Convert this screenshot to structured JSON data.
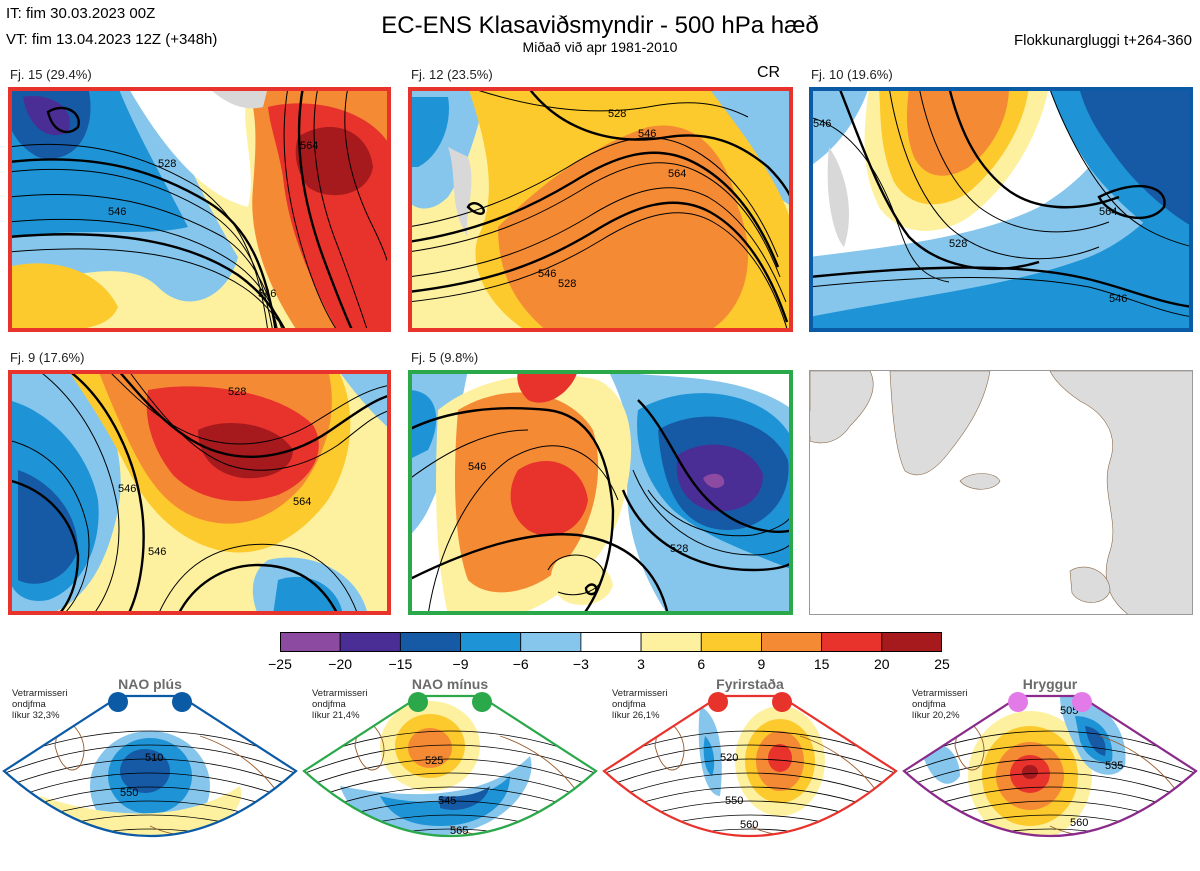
{
  "header": {
    "it_line": "IT: fim 30.03.2023 00Z",
    "vt_line": "VT: fim 13.04.2023 12Z  (+348h)",
    "title": "EC-ENS Klasaviðsmyndir - 500 hPa hæð",
    "subtitle": "Miðað við apr 1981-2010",
    "window_label": "Flokkunargluggi t+264-360"
  },
  "panels": [
    {
      "label": "Fj. 15 (29.4%)",
      "frame_color": "#e8322c",
      "regime": "Fyrirstaða"
    },
    {
      "label": "Fj. 12 (23.5%)",
      "frame_color": "#e8322c",
      "regime": "Fyrirstaða",
      "corner_label": "CR"
    },
    {
      "label": "Fj. 10 (19.6%)",
      "frame_color": "#0b5aa6",
      "regime": "NAO plús"
    },
    {
      "label": "Fj. 9 (17.6%)",
      "frame_color": "#e8322c",
      "regime": "Fyrirstaða"
    },
    {
      "label": "Fj. 5 (9.8%)",
      "frame_color": "#2aa84a",
      "regime": "NAO mínus"
    }
  ],
  "contour_labels": [
    "528",
    "546",
    "564",
    "546",
    "528",
    "546",
    "564",
    "546",
    "528",
    "546",
    "528",
    "546",
    "564",
    "546",
    "528",
    "546",
    "564",
    "546",
    "528"
  ],
  "colorbar": {
    "ticks": [
      "−25",
      "−20",
      "−15",
      "−9",
      "−6",
      "−3",
      "3",
      "6",
      "9",
      "15",
      "20",
      "25"
    ],
    "colors": [
      "#8c4aa0",
      "#4a2e96",
      "#1659a5",
      "#1e94d6",
      "#86c6ec",
      "#ffffff",
      "#fdf1a0",
      "#fcca2c",
      "#f58a35",
      "#e8322c",
      "#a61a1e"
    ]
  },
  "regimes": [
    {
      "name": "NAO plús",
      "info_line1": "Vetrarmisseri",
      "info_line2": "ondjfma",
      "info_line3": "líkur 32,3%",
      "dot_color": "#0b5aa6",
      "frame_color": "#0b5aa6",
      "labels": [
        "510",
        "550"
      ]
    },
    {
      "name": "NAO mínus",
      "info_line1": "Vetrarmisseri",
      "info_line2": "ondjfma",
      "info_line3": "líkur 21,4%",
      "dot_color": "#2aa84a",
      "frame_color": "#2aa84a",
      "labels": [
        "525",
        "545",
        "565"
      ]
    },
    {
      "name": "Fyrirstaða",
      "info_line1": "Vetrarmisseri",
      "info_line2": "ondjfma",
      "info_line3": "líkur 26,1%",
      "dot_color": "#e8322c",
      "frame_color": "#e8322c",
      "labels": [
        "520",
        "550",
        "560"
      ]
    },
    {
      "name": "Hryggur",
      "info_line1": "Vetrarmisseri",
      "info_line2": "ondjfma",
      "info_line3": "líkur 20,2%",
      "dot_color": "#e27ae8",
      "frame_color": "#8a2a8a",
      "labels": [
        "505",
        "535",
        "560"
      ]
    }
  ]
}
